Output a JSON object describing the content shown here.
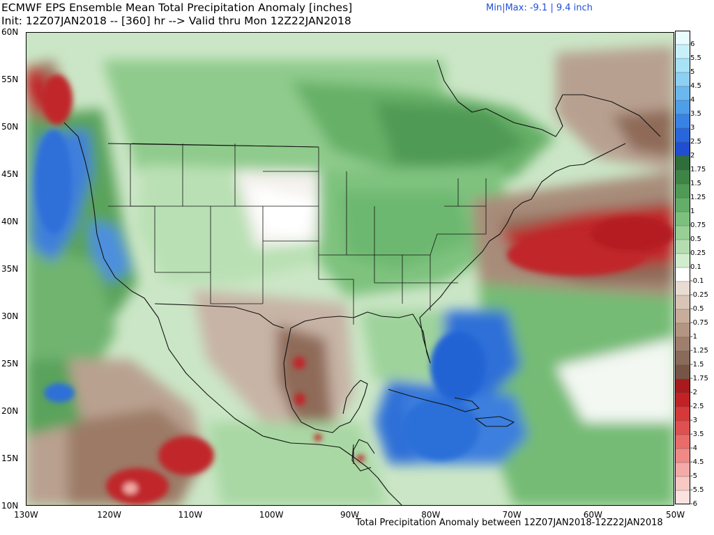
{
  "header": {
    "title": "ECMWF EPS Ensemble Mean Total Precipitation Anomaly [inches]",
    "subtitle": "Init: 12Z07JAN2018 -- [360] hr --> Valid thru Mon 12Z22JAN2018",
    "minmax": "Min|Max: -9.1 | 9.4 inch"
  },
  "footer": "Total Precipitation Anomaly between 12Z07JAN2018-12Z22JAN2018",
  "axes": {
    "lat_labels": [
      "60N",
      "55N",
      "50N",
      "45N",
      "40N",
      "35N",
      "30N",
      "25N",
      "20N",
      "15N",
      "10N"
    ],
    "lon_labels": [
      "130W",
      "120W",
      "110W",
      "100W",
      "90W",
      "80W",
      "70W",
      "60W",
      "50W"
    ]
  },
  "colorbar": {
    "labels": [
      "6",
      "5.5",
      "5",
      "4.5",
      "4",
      "3.5",
      "3",
      "2.5",
      "2",
      "1.75",
      "1.5",
      "1.25",
      "1",
      "0.75",
      "0.5",
      "0.25",
      "0.1",
      "-0.1",
      "-0.25",
      "-0.5",
      "-0.75",
      "-1",
      "-1.25",
      "-1.5",
      "-1.75",
      "-2",
      "-2.5",
      "-3",
      "-3.5",
      "-4",
      "-4.5",
      "-5",
      "-5.5",
      "-6"
    ],
    "colors": [
      "#e8fbff",
      "#c8f0fb",
      "#a8e2f6",
      "#8cd0f2",
      "#6cb8ee",
      "#4e9ee8",
      "#3882e4",
      "#2866dc",
      "#1f4fd0",
      "#2f6e3a",
      "#3e8446",
      "#4f9a55",
      "#63ae68",
      "#7cc07e",
      "#97cf95",
      "#b4ddb0",
      "#d2ecce",
      "#ffffff",
      "#e9dcd2",
      "#d8c5b5",
      "#c7ad9a",
      "#b39581",
      "#9f7f6c",
      "#8a6a58",
      "#755646",
      "#a81a1e",
      "#c22226",
      "#d5393a",
      "#e05050",
      "#e86c6a",
      "#ef8a87",
      "#f4aaa6",
      "#f8c8c4",
      "#fbe2de"
    ]
  },
  "key_colors": {
    "ocean_wet": "#4e9a52",
    "land_light_wet": "#a9d8a4",
    "heavy_wet": "#2f6fd6",
    "dry_brown": "#8f6a58",
    "very_dry_red": "#c0262a",
    "minmax_text": "#1f4fd8"
  }
}
